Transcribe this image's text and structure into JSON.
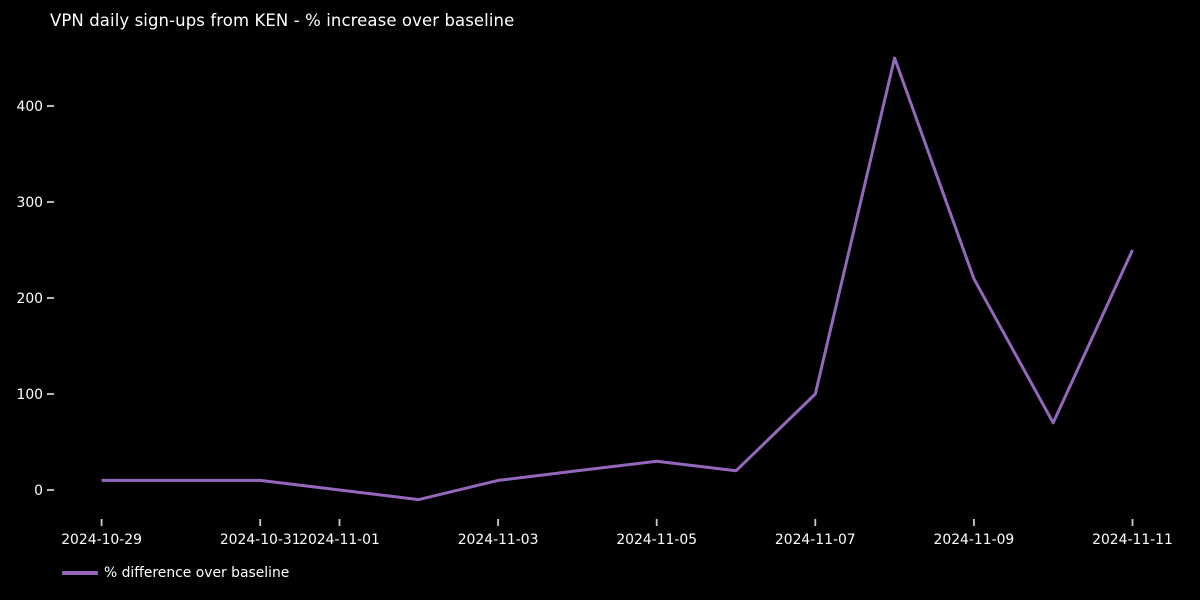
{
  "chart_data": {
    "type": "line",
    "title": "VPN daily sign-ups from KEN - % increase over baseline",
    "xlabel": "",
    "ylabel": "",
    "x": [
      "2024-10-29",
      "2024-10-30",
      "2024-10-31",
      "2024-11-01",
      "2024-11-02",
      "2024-11-03",
      "2024-11-04",
      "2024-11-05",
      "2024-11-06",
      "2024-11-07",
      "2024-11-08",
      "2024-11-09",
      "2024-11-10",
      "2024-11-11"
    ],
    "series": [
      {
        "name": "% difference over baseline",
        "color": "#9467bd",
        "values": [
          10,
          10,
          10,
          0,
          -10,
          10,
          20,
          30,
          20,
          100,
          450,
          220,
          70,
          250
        ]
      }
    ],
    "yticks": [
      0,
      100,
      200,
      300,
      400
    ],
    "xtick_labels": [
      "2024-10-29",
      "2024-10-31",
      "2024-11-01",
      "2024-11-03",
      "2024-11-05",
      "2024-11-07",
      "2024-11-09",
      "2024-11-11"
    ],
    "ylim": [
      -33,
      473
    ],
    "grid": false,
    "legend_position": "lower-left",
    "background_color": "#000000",
    "text_color": "#ffffff",
    "tick_color": "#cccccc"
  }
}
